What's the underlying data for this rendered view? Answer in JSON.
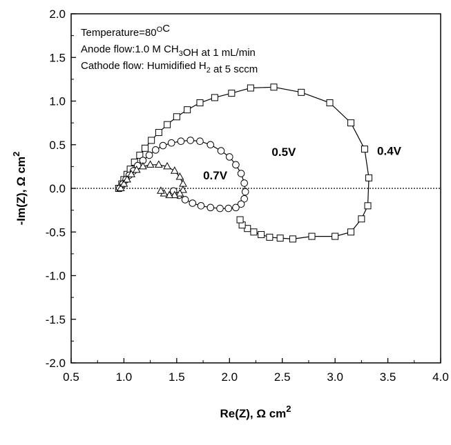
{
  "chart_data": {
    "type": "scatter",
    "title": "",
    "xlabel": {
      "main": "Re(Z), Ω cm",
      "sup": "2"
    },
    "ylabel": {
      "main": "-Im(Z), Ω cm",
      "sup": "2"
    },
    "xlim": [
      0.5,
      4.0
    ],
    "ylim": [
      -2.0,
      2.0
    ],
    "xticks": [
      "0.5",
      "1.0",
      "1.5",
      "2.0",
      "2.5",
      "3.0",
      "3.5",
      "4.0"
    ],
    "yticks": [
      "2.0",
      "1.5",
      "1.0",
      "0.5",
      "0.0",
      "-0.5",
      "-1.0",
      "-1.5",
      "-2.0"
    ],
    "grid": false,
    "zero_line": true,
    "annotations": [
      {
        "segments": [
          {
            "text": "Temperature=80"
          },
          {
            "text": "O",
            "sup": true
          },
          {
            "text": "C"
          }
        ]
      },
      {
        "segments": [
          {
            "text": "Anode flow:1.0 M CH"
          },
          {
            "text": "3",
            "sub": true
          },
          {
            "text": "OH at 1 mL/min"
          }
        ]
      },
      {
        "segments": [
          {
            "text": "Cathode flow: Humidified H"
          },
          {
            "text": "2",
            "sub": true
          },
          {
            "text": "  at 5 sccm"
          }
        ]
      }
    ],
    "series": [
      {
        "name": "0.4V",
        "marker": "square",
        "x": [
          0.95,
          0.98,
          1.0,
          1.03,
          1.06,
          1.1,
          1.15,
          1.2,
          1.26,
          1.33,
          1.41,
          1.5,
          1.6,
          1.72,
          1.86,
          2.02,
          2.2,
          2.42,
          2.68,
          2.95,
          3.15,
          3.28,
          3.32,
          3.31,
          3.25,
          3.15,
          3.0,
          2.78,
          2.6,
          2.48,
          2.38,
          2.3,
          2.23,
          2.17,
          2.12,
          2.1
        ],
        "y": [
          0.0,
          0.05,
          0.1,
          0.16,
          0.22,
          0.3,
          0.38,
          0.46,
          0.55,
          0.64,
          0.73,
          0.82,
          0.9,
          0.98,
          1.04,
          1.09,
          1.15,
          1.16,
          1.1,
          0.98,
          0.75,
          0.45,
          0.12,
          -0.2,
          -0.35,
          -0.5,
          -0.55,
          -0.55,
          -0.58,
          -0.57,
          -0.56,
          -0.53,
          -0.5,
          -0.46,
          -0.42,
          -0.36
        ]
      },
      {
        "name": "0.5V",
        "marker": "circle",
        "x": [
          0.96,
          0.99,
          1.02,
          1.05,
          1.09,
          1.13,
          1.18,
          1.24,
          1.3,
          1.37,
          1.45,
          1.54,
          1.63,
          1.72,
          1.82,
          1.92,
          2.0,
          2.06,
          2.11,
          2.14,
          2.15,
          2.14,
          2.11,
          2.06,
          1.99,
          1.91,
          1.82,
          1.73,
          1.65,
          1.58,
          1.52,
          1.47
        ],
        "y": [
          0.0,
          0.05,
          0.1,
          0.15,
          0.2,
          0.26,
          0.32,
          0.38,
          0.44,
          0.49,
          0.52,
          0.54,
          0.55,
          0.54,
          0.5,
          0.43,
          0.36,
          0.27,
          0.17,
          0.06,
          -0.04,
          -0.12,
          -0.18,
          -0.22,
          -0.23,
          -0.23,
          -0.22,
          -0.2,
          -0.17,
          -0.13,
          -0.08,
          -0.03
        ]
      },
      {
        "name": "0.7V",
        "marker": "triangle",
        "x": [
          0.97,
          1.0,
          1.03,
          1.07,
          1.12,
          1.18,
          1.25,
          1.33,
          1.41,
          1.48,
          1.53,
          1.56,
          1.56,
          1.53,
          1.48,
          1.43,
          1.38,
          1.35
        ],
        "y": [
          0.0,
          0.05,
          0.1,
          0.16,
          0.21,
          0.25,
          0.27,
          0.27,
          0.25,
          0.2,
          0.13,
          0.05,
          -0.02,
          -0.06,
          -0.08,
          -0.08,
          -0.06,
          -0.03
        ]
      }
    ]
  }
}
